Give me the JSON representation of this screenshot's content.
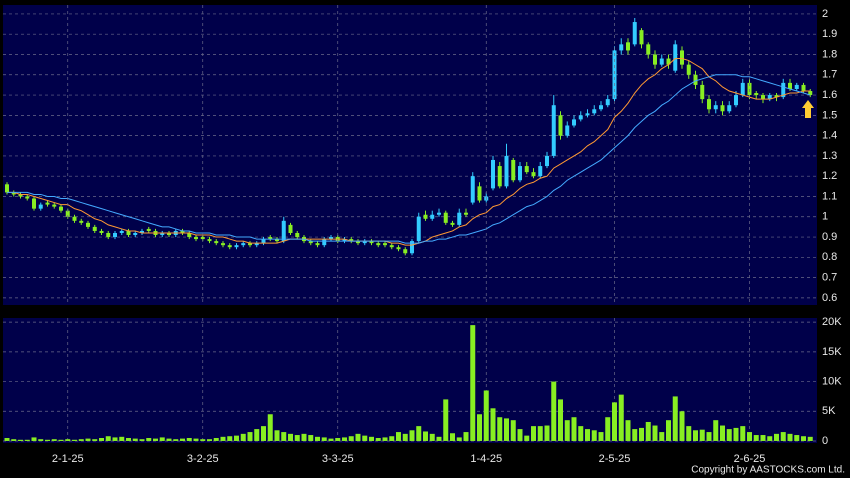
{
  "chart_data": [
    {
      "type": "candlestick",
      "up_color": "#33ccff",
      "down_color": "#88ee22",
      "grid": true,
      "ylim": [
        0.565,
        2.044
      ],
      "yticks": [
        0.6,
        0.7,
        0.8,
        0.9,
        1,
        1.1,
        1.2,
        1.3,
        1.4,
        1.5,
        1.6,
        1.7,
        1.8,
        1.9,
        2
      ],
      "open": [
        1.16,
        1.12,
        1.11,
        1.1,
        1.09,
        1.04,
        1.07,
        1.06,
        1.05,
        1.03,
        1.0,
        0.98,
        0.97,
        0.95,
        0.93,
        0.92,
        0.9,
        0.92,
        0.93,
        0.91,
        0.92,
        0.94,
        0.93,
        0.91,
        0.92,
        0.91,
        0.93,
        0.92,
        0.9,
        0.9,
        0.89,
        0.88,
        0.87,
        0.86,
        0.85,
        0.86,
        0.87,
        0.86,
        0.87,
        0.9,
        0.89,
        0.88,
        0.96,
        0.92,
        0.9,
        0.88,
        0.87,
        0.86,
        0.89,
        0.9,
        0.88,
        0.89,
        0.88,
        0.87,
        0.88,
        0.87,
        0.87,
        0.86,
        0.85,
        0.84,
        0.82,
        0.88,
        1.01,
        0.99,
        1.01,
        1.02,
        0.97,
        0.96,
        1.02,
        1.07,
        1.15,
        1.08,
        1.14,
        1.25,
        1.15,
        1.28,
        1.18,
        1.25,
        1.22,
        1.2,
        1.25,
        1.3,
        1.5,
        1.4,
        1.45,
        1.48,
        1.5,
        1.51,
        1.53,
        1.55,
        1.58,
        1.82,
        1.86,
        1.85,
        1.92,
        1.85,
        1.8,
        1.75,
        1.78,
        1.72,
        1.82,
        1.75,
        1.7,
        1.65,
        1.58,
        1.53,
        1.55,
        1.52,
        1.55,
        1.6,
        1.66,
        1.61,
        1.6,
        1.58,
        1.6,
        1.59,
        1.66,
        1.63,
        1.65,
        1.62
      ],
      "high": [
        1.17,
        1.13,
        1.12,
        1.11,
        1.1,
        1.07,
        1.08,
        1.07,
        1.06,
        1.04,
        1.01,
        0.99,
        0.98,
        0.96,
        0.94,
        0.93,
        0.93,
        0.94,
        0.94,
        0.93,
        0.94,
        0.95,
        0.94,
        0.93,
        0.93,
        0.94,
        0.94,
        0.93,
        0.91,
        0.91,
        0.9,
        0.89,
        0.88,
        0.87,
        0.87,
        0.88,
        0.88,
        0.88,
        0.9,
        0.91,
        0.9,
        1.0,
        0.97,
        0.93,
        0.91,
        0.89,
        0.88,
        0.9,
        0.91,
        0.91,
        0.9,
        0.9,
        0.89,
        0.89,
        0.89,
        0.88,
        0.88,
        0.87,
        0.86,
        0.85,
        0.89,
        1.02,
        1.03,
        1.03,
        1.04,
        1.03,
        0.98,
        1.04,
        1.04,
        1.22,
        1.17,
        1.12,
        1.3,
        1.27,
        1.36,
        1.29,
        1.27,
        1.27,
        1.24,
        1.27,
        1.32,
        1.6,
        1.52,
        1.47,
        1.5,
        1.52,
        1.53,
        1.55,
        1.57,
        1.6,
        1.84,
        1.88,
        1.88,
        1.98,
        1.93,
        1.86,
        1.82,
        1.8,
        1.8,
        1.87,
        1.84,
        1.77,
        1.72,
        1.67,
        1.6,
        1.57,
        1.57,
        1.57,
        1.62,
        1.68,
        1.68,
        1.62,
        1.61,
        1.61,
        1.61,
        1.68,
        1.68,
        1.66,
        1.66,
        1.63
      ],
      "low": [
        1.11,
        1.1,
        1.09,
        1.08,
        1.03,
        1.03,
        1.05,
        1.04,
        1.02,
        0.99,
        0.97,
        0.96,
        0.94,
        0.92,
        0.91,
        0.89,
        0.89,
        0.91,
        0.9,
        0.9,
        0.91,
        0.92,
        0.9,
        0.9,
        0.9,
        0.9,
        0.91,
        0.89,
        0.88,
        0.88,
        0.87,
        0.86,
        0.85,
        0.84,
        0.84,
        0.85,
        0.85,
        0.85,
        0.86,
        0.88,
        0.87,
        0.87,
        0.91,
        0.89,
        0.87,
        0.86,
        0.85,
        0.85,
        0.88,
        0.87,
        0.87,
        0.87,
        0.86,
        0.86,
        0.86,
        0.85,
        0.85,
        0.84,
        0.83,
        0.81,
        0.81,
        0.87,
        0.98,
        0.98,
        1.0,
        0.96,
        0.95,
        0.95,
        1.0,
        1.06,
        1.07,
        1.07,
        1.13,
        1.14,
        1.14,
        1.17,
        1.17,
        1.21,
        1.19,
        1.19,
        1.24,
        1.29,
        1.38,
        1.39,
        1.44,
        1.47,
        1.49,
        1.5,
        1.52,
        1.54,
        1.57,
        1.8,
        1.8,
        1.84,
        1.83,
        1.78,
        1.73,
        1.74,
        1.73,
        1.71,
        1.73,
        1.68,
        1.63,
        1.56,
        1.51,
        1.51,
        1.5,
        1.51,
        1.54,
        1.59,
        1.58,
        1.58,
        1.56,
        1.57,
        1.57,
        1.58,
        1.62,
        1.62,
        1.61,
        1.59
      ],
      "close": [
        1.12,
        1.11,
        1.1,
        1.09,
        1.04,
        1.06,
        1.06,
        1.05,
        1.03,
        1.0,
        0.98,
        0.97,
        0.95,
        0.93,
        0.92,
        0.9,
        0.92,
        0.93,
        0.91,
        0.92,
        0.93,
        0.93,
        0.91,
        0.92,
        0.91,
        0.93,
        0.92,
        0.9,
        0.89,
        0.89,
        0.88,
        0.87,
        0.86,
        0.85,
        0.86,
        0.87,
        0.86,
        0.87,
        0.89,
        0.89,
        0.88,
        0.98,
        0.92,
        0.9,
        0.88,
        0.87,
        0.86,
        0.89,
        0.9,
        0.88,
        0.89,
        0.88,
        0.87,
        0.88,
        0.87,
        0.86,
        0.86,
        0.85,
        0.84,
        0.82,
        0.88,
        1.0,
        0.99,
        1.01,
        1.02,
        0.97,
        0.96,
        1.02,
        1.01,
        1.2,
        1.08,
        1.1,
        1.28,
        1.15,
        1.3,
        1.18,
        1.25,
        1.22,
        1.2,
        1.25,
        1.3,
        1.55,
        1.4,
        1.45,
        1.48,
        1.5,
        1.51,
        1.53,
        1.55,
        1.58,
        1.82,
        1.85,
        1.82,
        1.96,
        1.85,
        1.8,
        1.75,
        1.78,
        1.75,
        1.85,
        1.75,
        1.7,
        1.65,
        1.58,
        1.53,
        1.55,
        1.52,
        1.55,
        1.6,
        1.66,
        1.6,
        1.6,
        1.58,
        1.6,
        1.59,
        1.66,
        1.63,
        1.65,
        1.62,
        1.6
      ],
      "series": [
        {
          "color": "#ff9933",
          "values": [
            1.12,
            1.12,
            1.11,
            1.11,
            1.1,
            1.09,
            1.08,
            1.07,
            1.06,
            1.06,
            1.04,
            1.03,
            1.01,
            0.99,
            0.98,
            0.96,
            0.95,
            0.94,
            0.93,
            0.93,
            0.92,
            0.92,
            0.92,
            0.92,
            0.92,
            0.92,
            0.92,
            0.92,
            0.91,
            0.91,
            0.91,
            0.9,
            0.9,
            0.89,
            0.88,
            0.88,
            0.87,
            0.87,
            0.87,
            0.87,
            0.87,
            0.88,
            0.89,
            0.89,
            0.89,
            0.89,
            0.89,
            0.89,
            0.89,
            0.89,
            0.89,
            0.88,
            0.88,
            0.88,
            0.88,
            0.88,
            0.88,
            0.87,
            0.87,
            0.86,
            0.86,
            0.87,
            0.88,
            0.9,
            0.91,
            0.92,
            0.93,
            0.95,
            0.96,
            0.99,
            1.01,
            1.02,
            1.05,
            1.06,
            1.09,
            1.11,
            1.14,
            1.16,
            1.17,
            1.19,
            1.2,
            1.24,
            1.26,
            1.28,
            1.3,
            1.32,
            1.35,
            1.37,
            1.4,
            1.43,
            1.49,
            1.52,
            1.56,
            1.61,
            1.65,
            1.68,
            1.7,
            1.73,
            1.75,
            1.78,
            1.78,
            1.77,
            1.75,
            1.73,
            1.69,
            1.67,
            1.64,
            1.62,
            1.61,
            1.6,
            1.59,
            1.58,
            1.58,
            1.58,
            1.59,
            1.6,
            1.61,
            1.61,
            1.62,
            1.62
          ]
        },
        {
          "color": "#44aaff",
          "values": [
            1.12,
            1.12,
            1.12,
            1.12,
            1.11,
            1.11,
            1.1,
            1.1,
            1.09,
            1.09,
            1.08,
            1.07,
            1.06,
            1.05,
            1.04,
            1.03,
            1.02,
            1.01,
            1.0,
            0.99,
            0.98,
            0.97,
            0.96,
            0.95,
            0.95,
            0.94,
            0.93,
            0.93,
            0.92,
            0.92,
            0.92,
            0.91,
            0.91,
            0.91,
            0.9,
            0.9,
            0.9,
            0.89,
            0.89,
            0.89,
            0.89,
            0.89,
            0.89,
            0.89,
            0.89,
            0.88,
            0.88,
            0.88,
            0.88,
            0.88,
            0.88,
            0.88,
            0.88,
            0.88,
            0.88,
            0.88,
            0.88,
            0.88,
            0.88,
            0.87,
            0.87,
            0.87,
            0.88,
            0.88,
            0.89,
            0.89,
            0.9,
            0.91,
            0.91,
            0.92,
            0.93,
            0.94,
            0.96,
            0.97,
            0.99,
            1.01,
            1.03,
            1.05,
            1.06,
            1.08,
            1.1,
            1.13,
            1.15,
            1.18,
            1.2,
            1.22,
            1.24,
            1.26,
            1.28,
            1.31,
            1.34,
            1.37,
            1.4,
            1.44,
            1.47,
            1.5,
            1.52,
            1.55,
            1.57,
            1.6,
            1.63,
            1.65,
            1.67,
            1.68,
            1.69,
            1.7,
            1.7,
            1.7,
            1.7,
            1.69,
            1.69,
            1.68,
            1.67,
            1.66,
            1.65,
            1.64,
            1.63,
            1.62,
            1.61,
            1.6
          ]
        }
      ]
    },
    {
      "type": "bar",
      "color": "#88ee22",
      "grid": true,
      "ylim": [
        -340,
        20700
      ],
      "yticks": [
        0,
        {
          "value": 5000,
          "label": "5K"
        },
        {
          "value": 10000,
          "label": "10K"
        },
        {
          "value": 15000,
          "label": "15K"
        },
        {
          "value": 20000,
          "label": "20K"
        }
      ],
      "categories": [
        null,
        null,
        null,
        null,
        null,
        null,
        null,
        null,
        null,
        "2-1-25",
        null,
        null,
        null,
        null,
        null,
        null,
        null,
        null,
        null,
        null,
        null,
        null,
        null,
        null,
        null,
        null,
        null,
        null,
        null,
        "3-2-25",
        null,
        null,
        null,
        null,
        null,
        null,
        null,
        null,
        null,
        null,
        null,
        null,
        null,
        null,
        null,
        null,
        null,
        null,
        null,
        "3-3-25",
        null,
        null,
        null,
        null,
        null,
        null,
        null,
        null,
        null,
        null,
        null,
        null,
        null,
        null,
        null,
        null,
        null,
        null,
        null,
        null,
        null,
        "1-4-25",
        null,
        null,
        null,
        null,
        null,
        null,
        null,
        null,
        null,
        null,
        null,
        null,
        null,
        null,
        null,
        null,
        null,
        null,
        "2-5-25",
        null,
        null,
        null,
        null,
        null,
        null,
        null,
        null,
        null,
        null,
        null,
        null,
        null,
        null,
        null,
        null,
        null,
        null,
        null,
        "2-6-25",
        null,
        null,
        null,
        null,
        null,
        null,
        null,
        null,
        null
      ],
      "values": [
        500,
        300,
        200,
        200,
        600,
        300,
        200,
        300,
        200,
        300,
        200,
        300,
        400,
        300,
        500,
        800,
        600,
        700,
        500,
        400,
        300,
        500,
        400,
        600,
        400,
        300,
        400,
        500,
        400,
        300,
        300,
        500,
        700,
        800,
        900,
        1200,
        1500,
        2000,
        2500,
        4500,
        1800,
        1500,
        1200,
        1000,
        1200,
        1000,
        700,
        600,
        400,
        500,
        600,
        800,
        1200,
        900,
        700,
        500,
        600,
        800,
        1500,
        1200,
        1800,
        2500,
        1600,
        1200,
        700,
        7000,
        1300,
        600,
        1500,
        19500,
        4500,
        8500,
        5500,
        4000,
        3800,
        3500,
        2000,
        900,
        2500,
        2500,
        2600,
        10000,
        7000,
        3500,
        4000,
        2500,
        2000,
        1800,
        1500,
        4000,
        6500,
        7800,
        3500,
        2000,
        2200,
        3200,
        2600,
        1500,
        3500,
        7500,
        5000,
        2500,
        1800,
        1900,
        1500,
        3500,
        2600,
        2000,
        2200,
        2500,
        1500,
        1000,
        1000,
        800,
        1200,
        1500,
        1200,
        1000,
        800,
        700
      ]
    }
  ],
  "footer": "Copyright by AASTOCKS.com Ltd."
}
